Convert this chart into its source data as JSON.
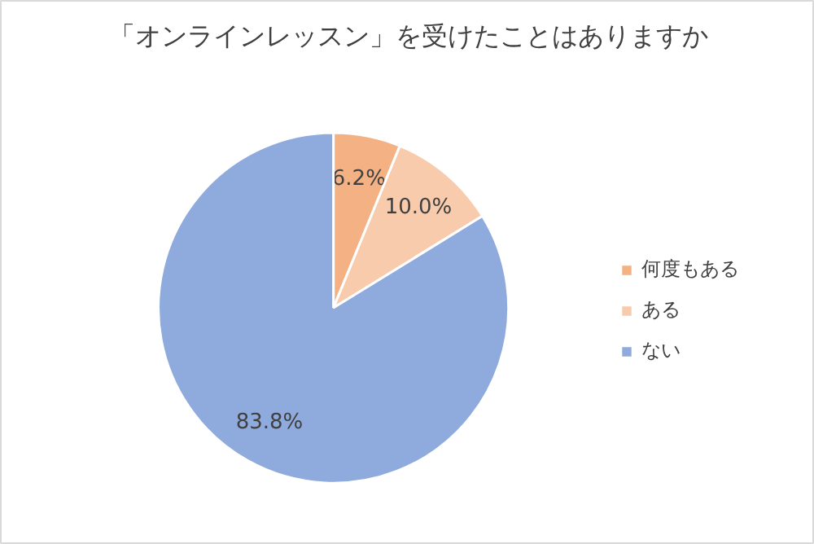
{
  "chart_data": {
    "type": "pie",
    "title": "「オンラインレッスン」を受けたことはありますか",
    "categories": [
      "何度もある",
      "ある",
      "ない"
    ],
    "values": [
      6.2,
      10.0,
      83.8
    ],
    "colors": [
      "#f4b183",
      "#f8cbad",
      "#8faadc"
    ],
    "value_labels": [
      "6.2%",
      "10.0%",
      "83.8%"
    ],
    "legend": "right"
  }
}
